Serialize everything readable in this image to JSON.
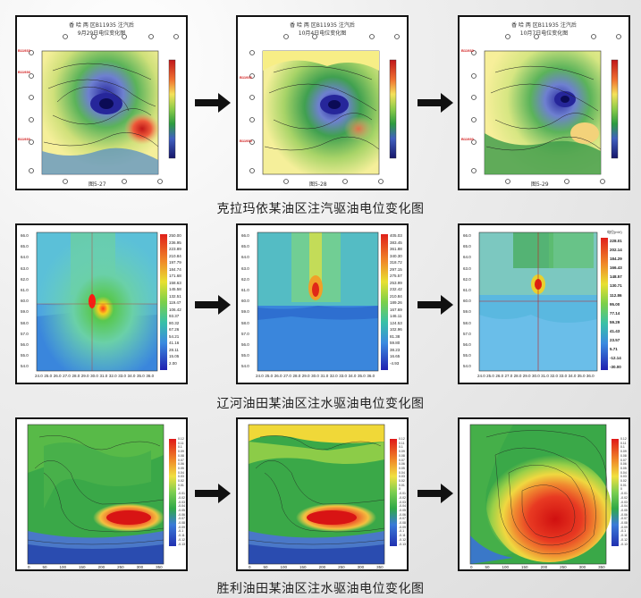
{
  "row1": {
    "caption": "克拉玛依某油区注汽驱油电位变化图",
    "panels": [
      {
        "title": "香 哈 两 区B11935 注汽后",
        "date": "9月29日电位变化图",
        "figure": "图5-27"
      },
      {
        "title": "香 哈 两 区B11935 注汽后",
        "date": "10月4日电位变化图",
        "figure": "图5-28"
      },
      {
        "title": "香 哈 两 区B11935 注汽后",
        "date": "10月7日电位变化图",
        "figure": "图5-29"
      }
    ],
    "well_labels": [
      "B11933",
      "B11936",
      "B11935",
      "B11931",
      "B11939",
      "B11934",
      "B11930"
    ],
    "colorbar": [
      "45",
      "40",
      "35",
      "30",
      "25",
      "20",
      "15",
      "10",
      "5",
      "0",
      "-5",
      "-10",
      "-15",
      "-20",
      "-25",
      "-30",
      "-35",
      "-40",
      "-45"
    ]
  },
  "row2": {
    "caption": "辽河油田某油区注水驱油电位变化图",
    "y_ticks": [
      "66.0",
      "65.0",
      "64.0",
      "63.0",
      "62.0",
      "61.0",
      "60.0",
      "59.0",
      "58.0",
      "57.0",
      "56.0",
      "55.0",
      "54.0"
    ],
    "x_ticks": [
      "24.0",
      "25.0",
      "26.0",
      "27.0",
      "28.0",
      "29.0",
      "30.0",
      "31.0",
      "32.0",
      "33.0",
      "34.0",
      "35.0",
      "36.0"
    ],
    "colorbar1": [
      "250.00",
      "236.95",
      "223.89",
      "210.84",
      "197.79",
      "184.74",
      "171.68",
      "158.63",
      "145.58",
      "132.51",
      "119.47",
      "106.42",
      "93.37",
      "80.32",
      "67.26",
      "54.21",
      "41.16",
      "28.11",
      "15.05",
      "2.00"
    ],
    "colorbar2": [
      "405.03",
      "383.45",
      "361.88",
      "340.30",
      "318.72",
      "297.15",
      "275.57",
      "253.99",
      "232.42",
      "210.84",
      "189.26",
      "167.69",
      "146.11",
      "124.53",
      "102.96",
      "81.38",
      "59.80",
      "38.23",
      "16.65",
      "-4.93"
    ],
    "colorbar3_header": "电位(mV)",
    "colorbar3": [
      "228.01",
      "202.14",
      "184.29",
      "166.43",
      "148.57",
      "130.71",
      "112.86",
      "95.00",
      "77.14",
      "59.29",
      "41.43",
      "23.57",
      "5.71",
      "-12.14",
      "-30.00"
    ]
  },
  "row3": {
    "caption": "胜利油田某油区注水驱油电位变化图",
    "colorbar": [
      "0.12",
      "0.11",
      "0.1",
      "0.09",
      "0.08",
      "0.07",
      "0.06",
      "0.05",
      "0.04",
      "0.03",
      "0.02",
      "0.01",
      "0",
      "-0.01",
      "-0.02",
      "-0.03",
      "-0.04",
      "-0.05",
      "-0.06",
      "-0.07",
      "-0.08",
      "-0.09",
      "-0.1",
      "-0.11",
      "-0.12",
      "-0.13"
    ],
    "x_ticks": [
      "0",
      "50",
      "100",
      "150",
      "200",
      "250",
      "300",
      "350"
    ]
  },
  "colors": {
    "arrow": "#111111",
    "frame": "#111111"
  }
}
